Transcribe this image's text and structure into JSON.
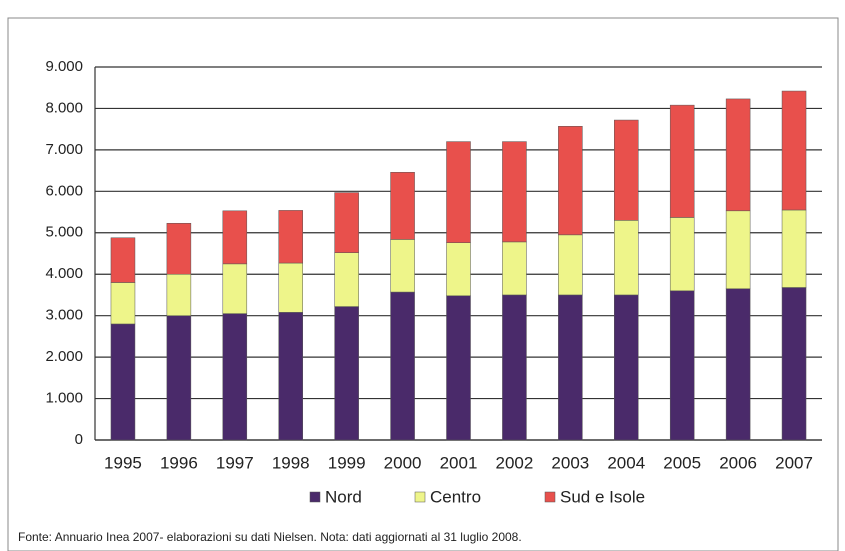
{
  "chart_data": {
    "type": "stacked_bar",
    "categories": [
      "1995",
      "1996",
      "1997",
      "1998",
      "1999",
      "2000",
      "2001",
      "2002",
      "2003",
      "2004",
      "2005",
      "2006",
      "2007"
    ],
    "series": [
      {
        "name": "Nord",
        "color": "#4a2a6a",
        "values": [
          2800,
          3000,
          3050,
          3080,
          3220,
          3570,
          3480,
          3500,
          3500,
          3500,
          3600,
          3650,
          3680
        ]
      },
      {
        "name": "Centro",
        "color": "#eef58a",
        "values": [
          1000,
          1000,
          1200,
          1190,
          1300,
          1270,
          1280,
          1280,
          1450,
          1800,
          1770,
          1880,
          1870
        ]
      },
      {
        "name": "Sud e Isole",
        "color": "#e8504c",
        "values": [
          1080,
          1230,
          1280,
          1270,
          1450,
          1620,
          2440,
          2420,
          2620,
          2420,
          2710,
          2700,
          2870
        ]
      }
    ],
    "ylim": [
      0,
      9000
    ],
    "yticks": [
      0,
      {
        "value": 1000,
        "label": "1.000"
      },
      {
        "value": 2000,
        "label": "2.000"
      },
      {
        "value": 3000,
        "label": "3.000"
      },
      {
        "value": 4000,
        "label": "4.000"
      },
      {
        "value": 5000,
        "label": "5.000"
      },
      {
        "value": 6000,
        "label": "6.000"
      },
      {
        "value": 7000,
        "label": "7.000"
      },
      {
        "value": 8000,
        "label": "8.000"
      },
      {
        "value": 9000,
        "label": "9.000"
      }
    ],
    "grid": true,
    "legend": "bottom",
    "note": "Fonte: Annuario Inea 2007- elaborazioni su dati Nielsen. Nota: dati aggiornati al 31 luglio 2008."
  }
}
